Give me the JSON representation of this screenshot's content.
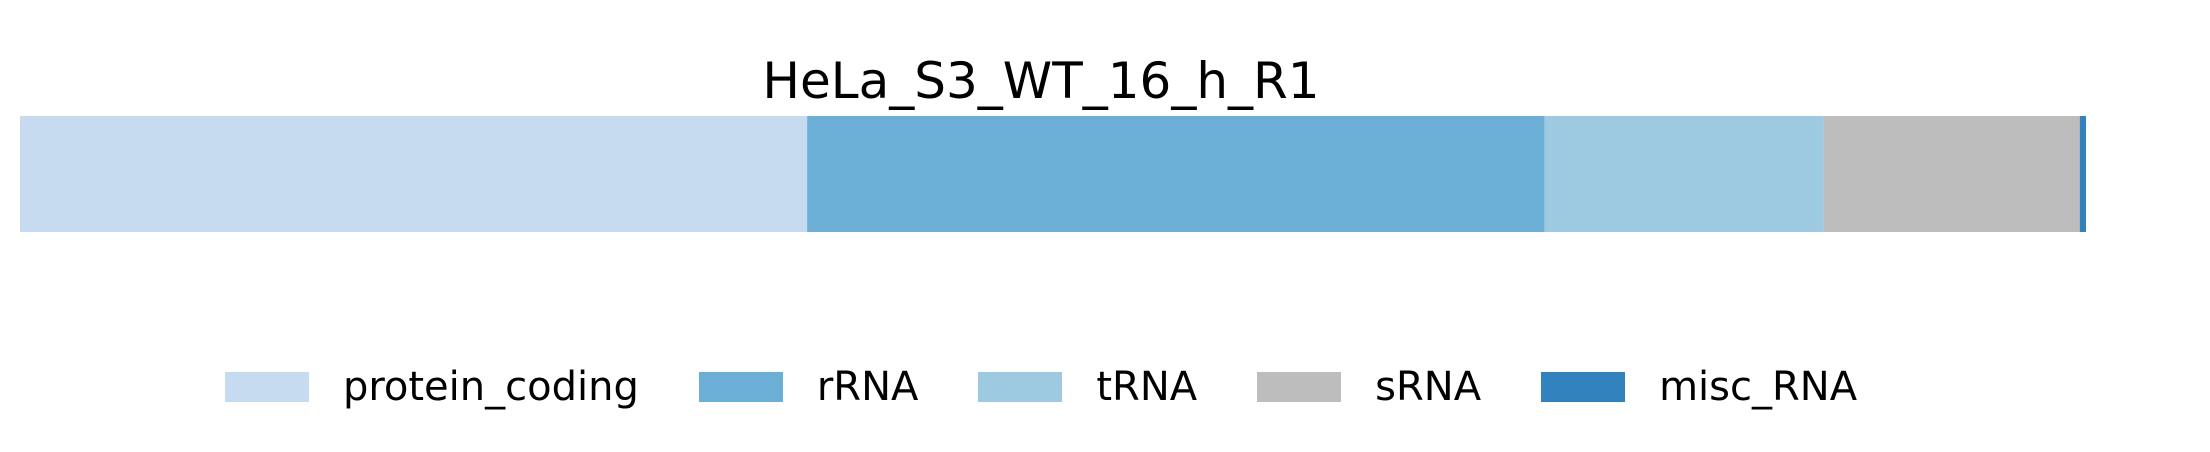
{
  "chart_data": {
    "type": "bar",
    "orientation": "horizontal",
    "stacked": true,
    "title": "HeLa_S3_WT_16_h_R1",
    "xlabel": "",
    "ylabel": "",
    "grid": false,
    "axes_visible": false,
    "legend_position": "bottom",
    "xlim": [
      0,
      1
    ],
    "series": [
      {
        "name": "protein_coding",
        "value": 0.381,
        "color": "#c6dbef"
      },
      {
        "name": "rRNA",
        "value": 0.357,
        "color": "#6baed6"
      },
      {
        "name": "tRNA",
        "value": 0.135,
        "color": "#9ecae1"
      },
      {
        "name": "sRNA",
        "value": 0.124,
        "color": "#bdbdbd"
      },
      {
        "name": "misc_RNA",
        "value": 0.003,
        "color": "#3182bd"
      }
    ]
  }
}
